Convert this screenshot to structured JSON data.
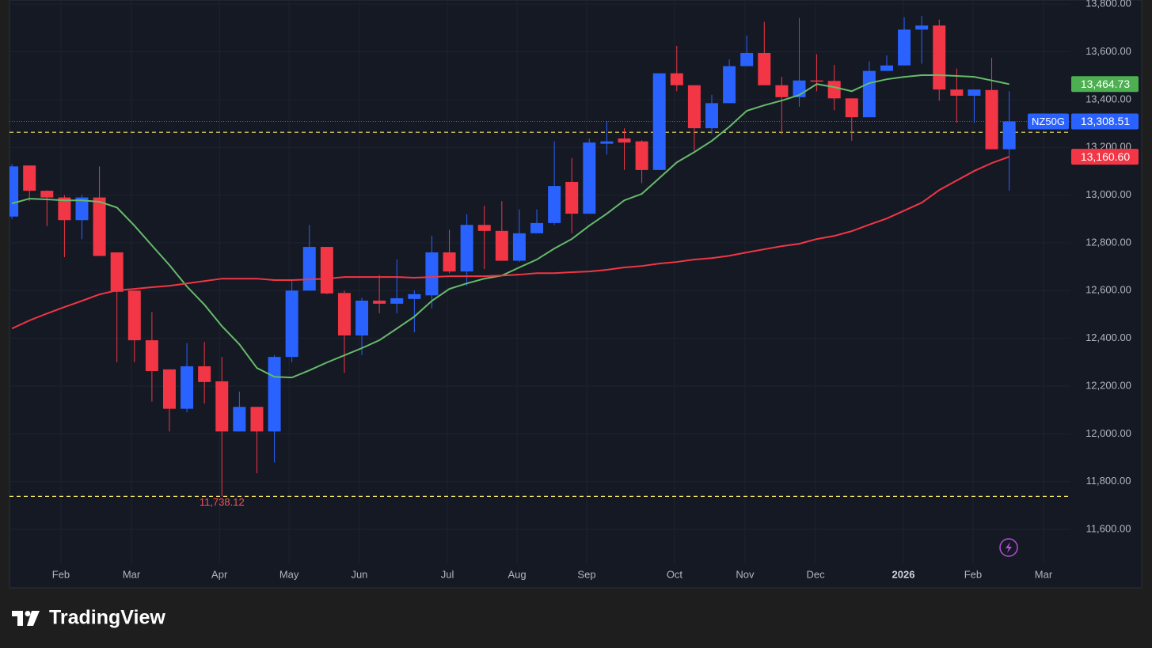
{
  "chart_data": {
    "type": "candlestick",
    "symbol": "NZ50G",
    "branding": "TradingView",
    "up_color": "#2962ff",
    "down_color": "#f23645",
    "open": [
      12910,
      13124,
      13018,
      12990,
      12895,
      12990,
      12760,
      12600,
      12392,
      12270,
      12105,
      12283,
      12220,
      12010,
      12113,
      12010,
      12322,
      12600,
      12783,
      12590,
      12412,
      12558,
      12545,
      12565,
      12580,
      12760,
      12680,
      12875,
      12850,
      12725,
      12840,
      12883,
      13055,
      12922,
      13215,
      13237,
      13225,
      13105,
      13510,
      13460,
      13280,
      13385,
      13540,
      13595,
      13460,
      13410,
      13480,
      13478,
      13405,
      13326,
      13520,
      13543,
      13693,
      13710,
      13442,
      13416,
      13440,
      13192
    ],
    "high": [
      13130,
      13124,
      13020,
      13000,
      13000,
      13120,
      12760,
      12600,
      12510,
      12270,
      12380,
      12385,
      12322,
      12177,
      12113,
      12330,
      12640,
      12875,
      12783,
      12600,
      12570,
      12665,
      12730,
      12600,
      12830,
      12855,
      12920,
      12955,
      12975,
      12940,
      12940,
      13225,
      13155,
      13237,
      13310,
      13280,
      13230,
      13510,
      13625,
      13460,
      13420,
      13568,
      13668,
      13725,
      13495,
      13742,
      13590,
      13545,
      13405,
      13560,
      13585,
      13745,
      13750,
      13735,
      13530,
      13442,
      13575,
      13435
    ],
    "low": [
      12900,
      12975,
      12870,
      12740,
      12815,
      12745,
      12300,
      12300,
      12135,
      12010,
      12090,
      12127,
      11738.12,
      12010,
      11835,
      11880,
      12300,
      12600,
      12585,
      12255,
      12330,
      12505,
      12505,
      12425,
      12525,
      12673,
      12620,
      12690,
      12725,
      12720,
      12840,
      12875,
      12840,
      12922,
      13170,
      13105,
      13050,
      13105,
      13435,
      13187,
      13255,
      13385,
      13540,
      13460,
      13255,
      13370,
      13435,
      13355,
      13228,
      13326,
      13520,
      13543,
      13550,
      13395,
      13303,
      13303,
      13192,
      13018
    ],
    "close": [
      13120,
      13018,
      12990,
      12895,
      12990,
      12745,
      12595,
      12392,
      12263,
      12105,
      12283,
      12217,
      12010,
      12113,
      12010,
      12322,
      12600,
      12783,
      12588,
      12412,
      12558,
      12545,
      12568,
      12585,
      12760,
      12680,
      12875,
      12850,
      12725,
      12840,
      12883,
      13038,
      12922,
      13220,
      13225,
      13220,
      13105,
      13510,
      13460,
      13280,
      13385,
      13540,
      13595,
      13460,
      13410,
      13480,
      13475,
      13405,
      13326,
      13520,
      13543,
      13693,
      13710,
      13442,
      13416,
      13442,
      13192,
      13308.51
    ],
    "lines": [
      {
        "color": "#66bb6a",
        "values": [
          12965,
          12985,
          12982,
          12978,
          12978,
          12972,
          12948,
          12872,
          12789,
          12707,
          12617,
          12541,
          12451,
          12375,
          12276,
          12239,
          12236,
          12266,
          12299,
          12329,
          12359,
          12392,
          12441,
          12491,
          12557,
          12607,
          12630,
          12650,
          12663,
          12697,
          12730,
          12776,
          12816,
          12872,
          12922,
          12978,
          13005,
          13071,
          13137,
          13180,
          13227,
          13286,
          13353,
          13376,
          13396,
          13419,
          13465,
          13452,
          13435,
          13469,
          13485,
          13495,
          13502,
          13502,
          13499,
          13495,
          13480,
          13464.73
        ]
      },
      {
        "color": "#f23645",
        "values": [
          12441,
          12475,
          12504,
          12531,
          12557,
          12584,
          12601,
          12607,
          12614,
          12620,
          12630,
          12640,
          12650,
          12650,
          12650,
          12644,
          12644,
          12647,
          12650,
          12657,
          12657,
          12657,
          12657,
          12654,
          12657,
          12660,
          12660,
          12660,
          12663,
          12667,
          12673,
          12673,
          12677,
          12680,
          12687,
          12697,
          12703,
          12713,
          12720,
          12730,
          12736,
          12746,
          12760,
          12773,
          12786,
          12796,
          12816,
          12829,
          12849,
          12876,
          12902,
          12935,
          12968,
          13021,
          13061,
          13101,
          13134,
          13160.6
        ]
      }
    ],
    "hlines": [
      13263,
      11738.12
    ],
    "hline_color": "#f5e663",
    "price_labels": [
      {
        "value": 13464.73,
        "label": "13,464.73",
        "color": "#4caf50"
      },
      {
        "value": 13308.51,
        "label": "13,308.51",
        "color": "#2962ff"
      },
      {
        "value": 13160.6,
        "label": "13,160.60",
        "color": "#f23645"
      }
    ],
    "annotations": [
      {
        "value": 11738.12,
        "label": "11,738.12"
      }
    ],
    "ylim": [
      11355,
      13817
    ],
    "yticks": [
      {
        "value": 11600,
        "label": "11,600.00"
      },
      {
        "value": 11800,
        "label": "11,800.00"
      },
      {
        "value": 12000,
        "label": "12,000.00"
      },
      {
        "value": 12200,
        "label": "12,200.00"
      },
      {
        "value": 12400,
        "label": "12,400.00"
      },
      {
        "value": 12600,
        "label": "12,600.00"
      },
      {
        "value": 12800,
        "label": "12,800.00"
      },
      {
        "value": 13000,
        "label": "13,000.00"
      },
      {
        "value": 13200,
        "label": "13,200.00"
      },
      {
        "value": 13400,
        "label": "13,400.00"
      },
      {
        "value": 13600,
        "label": "13,600.00"
      },
      {
        "value": 13800,
        "label": "13,800.00"
      }
    ],
    "xlim": [
      -0.14,
      60.5
    ],
    "xticks": [
      {
        "value": 2.8,
        "label": "Feb"
      },
      {
        "value": 6.83,
        "label": "Mar"
      },
      {
        "value": 11.86,
        "label": "Apr"
      },
      {
        "value": 15.84,
        "label": "May"
      },
      {
        "value": 19.86,
        "label": "Jun"
      },
      {
        "value": 24.89,
        "label": "Jul"
      },
      {
        "value": 28.87,
        "label": "Aug"
      },
      {
        "value": 32.85,
        "label": "Sep"
      },
      {
        "value": 37.87,
        "label": "Oct"
      },
      {
        "value": 41.9,
        "label": "Nov"
      },
      {
        "value": 45.93,
        "label": "Dec"
      },
      {
        "value": 50.95,
        "label": "2026"
      },
      {
        "value": 54.93,
        "label": "Feb"
      },
      {
        "value": 58.96,
        "label": "Mar"
      }
    ],
    "grid": true
  }
}
